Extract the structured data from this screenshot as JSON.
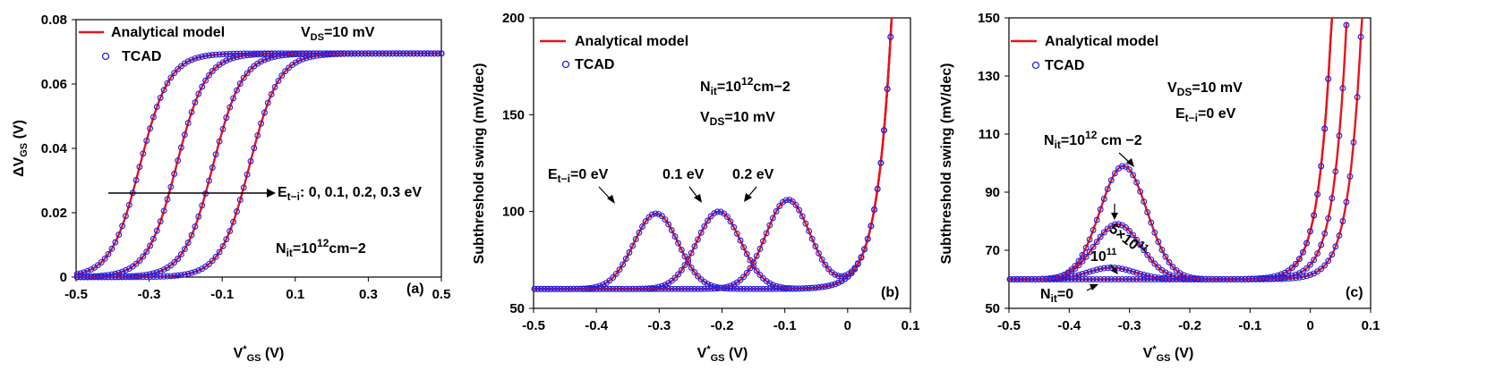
{
  "figure": {
    "panels": [
      "(a)",
      "(b)",
      "(c)"
    ]
  },
  "colors": {
    "model": "#e8131b",
    "tcad": "#1f1fe6",
    "axis": "#000000"
  },
  "chart_data": [
    {
      "type": "line",
      "panel_label": "(a)",
      "xlabel": "V*GS (V)",
      "ylabel": "ΔVGS (V)",
      "xlim": [
        -0.5,
        0.5
      ],
      "ylim": [
        0,
        0.08
      ],
      "xticks": [
        -0.5,
        -0.3,
        -0.1,
        0.1,
        0.3,
        0.5
      ],
      "xtick_labels": [
        "-0.5",
        "-0.3",
        "-0.1",
        "0.1",
        "0.3",
        "0.5"
      ],
      "yticks": [
        0,
        0.02,
        0.04,
        0.06,
        0.08
      ],
      "ytick_labels": [
        "0",
        "0.02",
        "0.04",
        "0.06",
        "0.08"
      ],
      "legend": [
        "Analytical model",
        "TCAD"
      ],
      "annotations": {
        "vds": {
          "main": "V",
          "sub": "DS",
          "rest": "=10 mV"
        },
        "arrow": {
          "main": "E",
          "sub": "t−i",
          "rest": ": 0, 0.1, 0.2, 0.3 eV"
        },
        "nit": {
          "main": "N",
          "sub": "it",
          "rest": "=10",
          "sup": "12",
          "unit": "cm−2"
        }
      },
      "series": [
        {
          "name": "E_t-i = 0 eV",
          "center": -0.325,
          "amplitude": 0.0695,
          "width": 0.04
        },
        {
          "name": "E_t-i = 0.1 eV",
          "center": -0.225,
          "amplitude": 0.0695,
          "width": 0.04
        },
        {
          "name": "E_t-i = 0.2 eV",
          "center": -0.125,
          "amplitude": 0.0695,
          "width": 0.04
        },
        {
          "name": "E_t-i = 0.3 eV",
          "center": -0.025,
          "amplitude": 0.0695,
          "width": 0.04
        }
      ]
    },
    {
      "type": "line",
      "panel_label": "(b)",
      "xlabel": "V*GS (V)",
      "ylabel": "Subthreshold swing (mV/dec)",
      "xlim": [
        -0.5,
        0.1
      ],
      "ylim": [
        50,
        200
      ],
      "xticks": [
        -0.5,
        -0.4,
        -0.3,
        -0.2,
        -0.1,
        0,
        0.1
      ],
      "xtick_labels": [
        "-0.5",
        "-0.4",
        "-0.3",
        "-0.2",
        "-0.1",
        "0",
        "0.1"
      ],
      "yticks": [
        50,
        100,
        150,
        200
      ],
      "ytick_labels": [
        "50",
        "100",
        "150",
        "200"
      ],
      "legend": [
        "Analytical model",
        "TCAD"
      ],
      "annotations": {
        "nit": {
          "main": "N",
          "sub": "it",
          "rest": "=10",
          "sup": "12",
          "unit": "cm−2"
        },
        "vds": {
          "main": "V",
          "sub": "DS",
          "rest": "=10 mV"
        },
        "e0": {
          "main": "E",
          "sub": "t−i",
          "rest": "=0 eV"
        },
        "e1": "0.1 eV",
        "e2": "0.2 eV"
      },
      "series": [
        {
          "name": "E_t-i = 0 eV",
          "peak_x": -0.305,
          "peak_y": 99,
          "base": 60,
          "width": 0.05
        },
        {
          "name": "E_t-i = 0.1 eV",
          "peak_x": -0.205,
          "peak_y": 100,
          "base": 60,
          "width": 0.05
        },
        {
          "name": "E_t-i = 0.2 eV",
          "peak_x": -0.095,
          "peak_y": 106,
          "base": 60,
          "width": 0.05
        }
      ]
    },
    {
      "type": "line",
      "panel_label": "(c)",
      "xlabel": "V*GS (V)",
      "ylabel": "Subthreshold swing (mV/dec)",
      "xlim": [
        -0.5,
        0.1
      ],
      "ylim": [
        50,
        150
      ],
      "xticks": [
        -0.5,
        -0.4,
        -0.3,
        -0.2,
        -0.1,
        0,
        0.1
      ],
      "xtick_labels": [
        "-0.5",
        "-0.4",
        "-0.3",
        "-0.2",
        "-0.1",
        "0",
        "0.1"
      ],
      "yticks": [
        50,
        70,
        90,
        110,
        130,
        150
      ],
      "ytick_labels": [
        "50",
        "70",
        "90",
        "110",
        "130",
        "150"
      ],
      "legend": [
        "Analytical model",
        "TCAD"
      ],
      "annotations": {
        "vds": {
          "main": "V",
          "sub": "DS",
          "rest": "=10 mV"
        },
        "eti": {
          "main": "E",
          "sub": "t−i",
          "rest": "=0 eV"
        },
        "nit_high": {
          "main": "N",
          "sub": "it",
          "rest": "=10",
          "sup": "12",
          "unit": "cm −2"
        },
        "nit_mid": "5×10",
        "nit_mid_sup": "11",
        "nit_low": "10",
        "nit_low_sup": "11",
        "nit_zero": {
          "main": "N",
          "sub": "it",
          "rest": "=0"
        }
      },
      "series": [
        {
          "name": "N_it = 0",
          "peak_x": -0.33,
          "peak_y": 60,
          "base": 60,
          "width": 0.055,
          "rise_x": -0.03
        },
        {
          "name": "N_it = 1e11",
          "peak_x": -0.33,
          "peak_y": 64,
          "base": 60,
          "width": 0.055,
          "rise_x": -0.03
        },
        {
          "name": "N_it = 5e11",
          "peak_x": -0.32,
          "peak_y": 79,
          "base": 60,
          "width": 0.055,
          "rise_x": -0.005
        },
        {
          "name": "N_it = 1e12",
          "peak_x": -0.31,
          "peak_y": 99,
          "base": 60,
          "width": 0.055,
          "rise_x": 0.02
        }
      ]
    }
  ]
}
